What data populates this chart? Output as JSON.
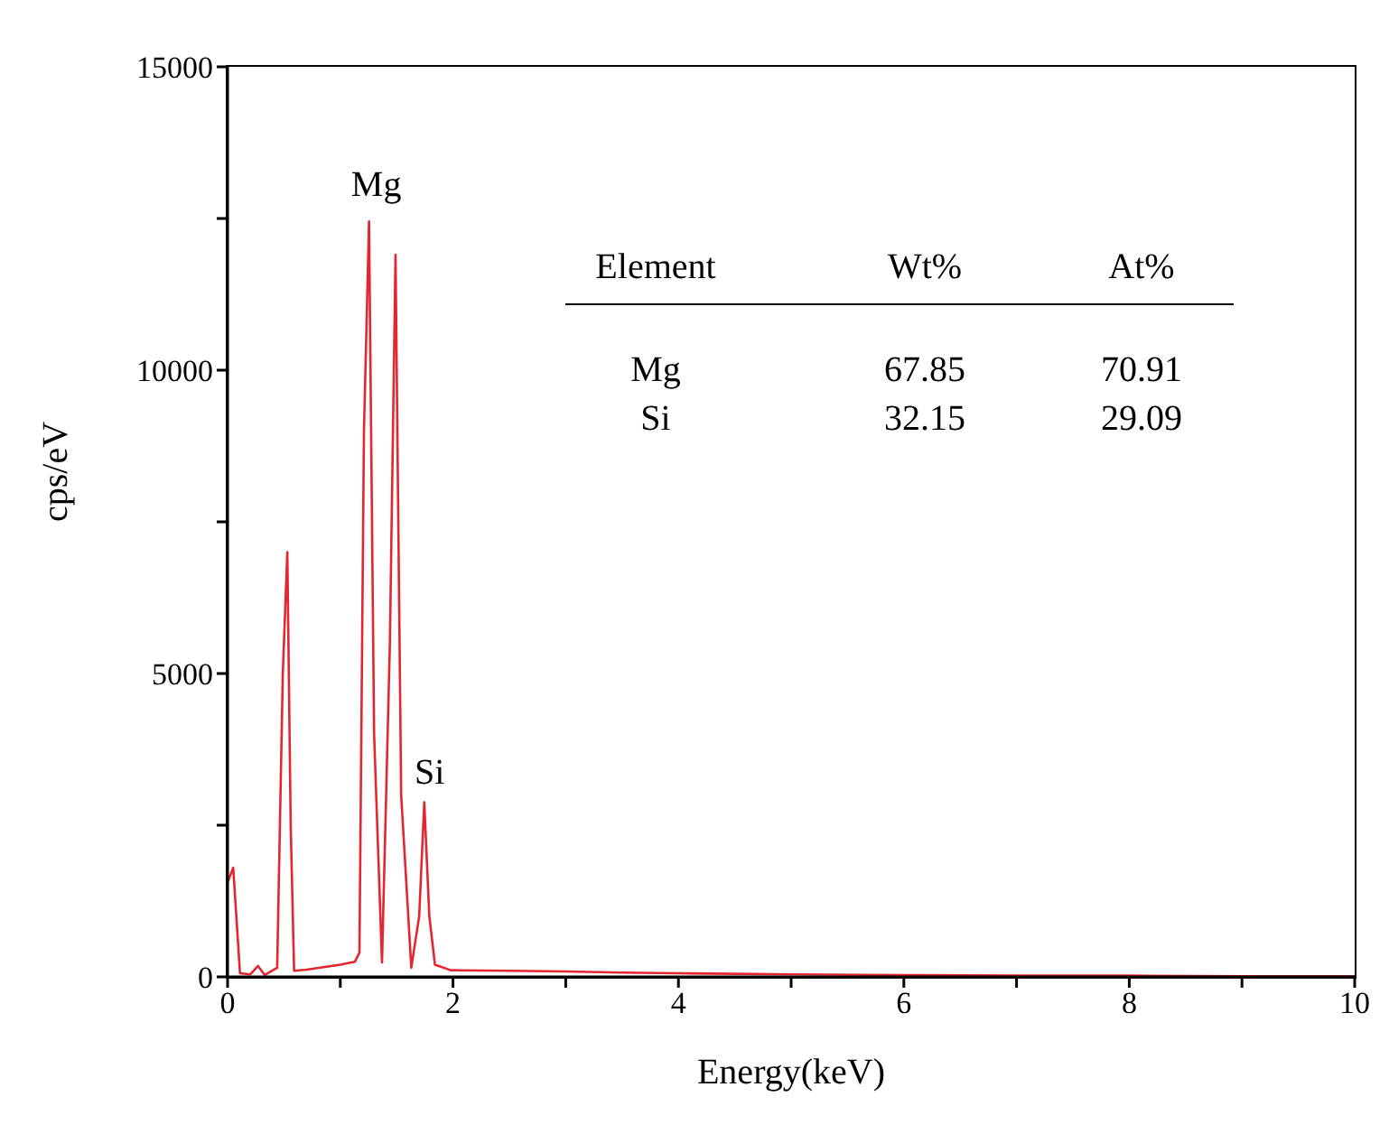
{
  "chart_data": {
    "type": "line",
    "xlabel": "Energy(keV)",
    "ylabel": "cps/eV",
    "x": [
      0,
      0.05,
      0.11,
      0.2,
      0.27,
      0.33,
      0.44,
      0.49,
      0.53,
      0.56,
      0.59,
      0.7,
      0.81,
      1.0,
      1.13,
      1.17,
      1.21,
      1.255,
      1.3,
      1.37,
      1.44,
      1.49,
      1.54,
      1.63,
      1.7,
      1.745,
      1.79,
      1.84,
      1.98,
      2.5,
      3,
      3.5,
      4,
      4.5,
      5,
      6,
      7,
      8,
      9,
      10
    ],
    "series": [
      {
        "color": "#e32630",
        "values": [
          1560,
          1800,
          60,
          40,
          180,
          30,
          150,
          5000,
          7000,
          2500,
          100,
          120,
          150,
          200,
          250,
          400,
          9000,
          12450,
          4000,
          240,
          5500,
          11900,
          3000,
          150,
          1000,
          2880,
          1000,
          200,
          110,
          100,
          90,
          70,
          60,
          50,
          40,
          30,
          20,
          20,
          10,
          10
        ]
      }
    ],
    "xlim": [
      0,
      10
    ],
    "xticks": [
      0,
      {
        "value": 1,
        "label": null
      },
      2,
      {
        "value": 3,
        "label": null
      },
      4,
      {
        "value": 5,
        "label": null
      },
      6,
      {
        "value": 7,
        "label": null
      },
      8,
      {
        "value": 9,
        "label": null
      },
      10
    ],
    "ylim": [
      0,
      15000
    ],
    "yticks": [
      0,
      {
        "value": 2500,
        "label": null
      },
      5000,
      {
        "value": 7500,
        "label": null
      },
      10000,
      {
        "value": 12500,
        "label": null
      },
      15000
    ],
    "marker": "none",
    "line_style": "solid",
    "annotations": [
      {
        "text": "Mg",
        "x": 1.255,
        "y": 12450
      },
      {
        "text": "Si",
        "x": 1.745,
        "y": 2880
      },
      "Element",
      "Wt%",
      "At%",
      "Mg",
      "67.85",
      "70.91",
      "Si",
      "32.15",
      "29.09"
    ]
  }
}
